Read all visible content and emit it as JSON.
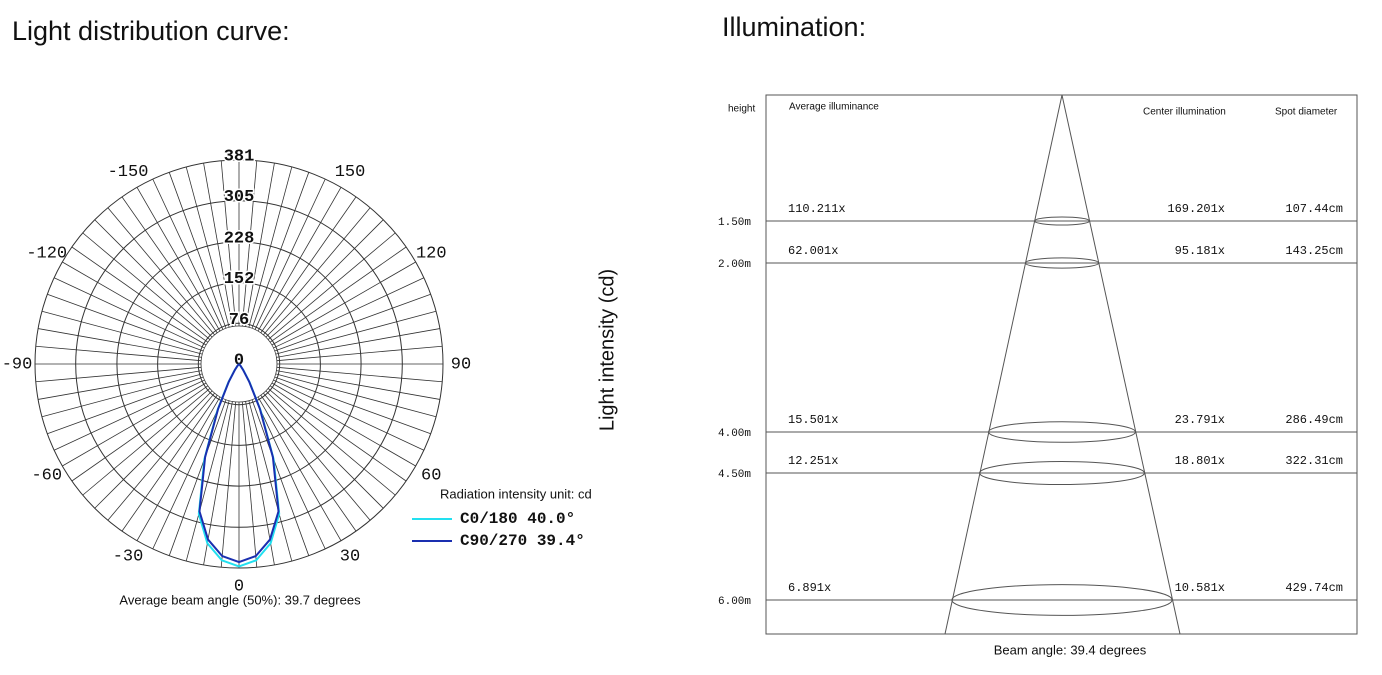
{
  "headings": {
    "left": "Light distribution curve:",
    "right": "Illumination:"
  },
  "chart_data": {
    "type": "polar",
    "y_label": "Light intensity (cd)",
    "legend_title": "Radiation intensity unit: cd",
    "caption": "Average beam angle (50%): 39.7 degrees",
    "ylim": [
      0,
      381
    ],
    "yticks": [
      0,
      76,
      152,
      228,
      305,
      381
    ],
    "xlim": [
      -180,
      180
    ],
    "xticks": [
      -150,
      -120,
      -90,
      -60,
      -30,
      0,
      30,
      60,
      90,
      120,
      150
    ],
    "x": [
      -45,
      -40,
      -35,
      -30,
      -25,
      -20,
      -15,
      -10,
      -5,
      0,
      5,
      10,
      15,
      20,
      25,
      30,
      35,
      40,
      45
    ],
    "series": [
      {
        "name": "C0/180 40.0°",
        "color": "#22e0f0",
        "values": [
          0,
          5,
          15,
          40,
          95,
          189,
          290,
          340,
          368,
          378,
          368,
          340,
          290,
          189,
          95,
          40,
          15,
          5,
          0
        ]
      },
      {
        "name": "C90/270 39.4°",
        "color": "#1a2fb0",
        "values": [
          0,
          4,
          13,
          38,
          92,
          185,
          285,
          333,
          360,
          370,
          360,
          333,
          285,
          185,
          92,
          38,
          13,
          4,
          0
        ]
      }
    ]
  },
  "illumination": {
    "headers": {
      "height": "height",
      "average": "Average illuminance",
      "center": "Center illumination",
      "spot": "Spot diameter"
    },
    "rows": [
      {
        "height": "1.50m",
        "average": "110.211x",
        "center": "169.201x",
        "spot": "107.44cm"
      },
      {
        "height": "2.00m",
        "average": "62.001x",
        "center": "95.181x",
        "spot": "143.25cm"
      },
      {
        "height": "4.00m",
        "average": "15.501x",
        "center": "23.791x",
        "spot": "286.49cm"
      },
      {
        "height": "4.50m",
        "average": "12.251x",
        "center": "18.801x",
        "spot": "322.31cm"
      },
      {
        "height": "6.00m",
        "average": "6.891x",
        "center": "10.581x",
        "spot": "429.74cm"
      }
    ],
    "caption": "Beam angle: 39.4 degrees"
  }
}
